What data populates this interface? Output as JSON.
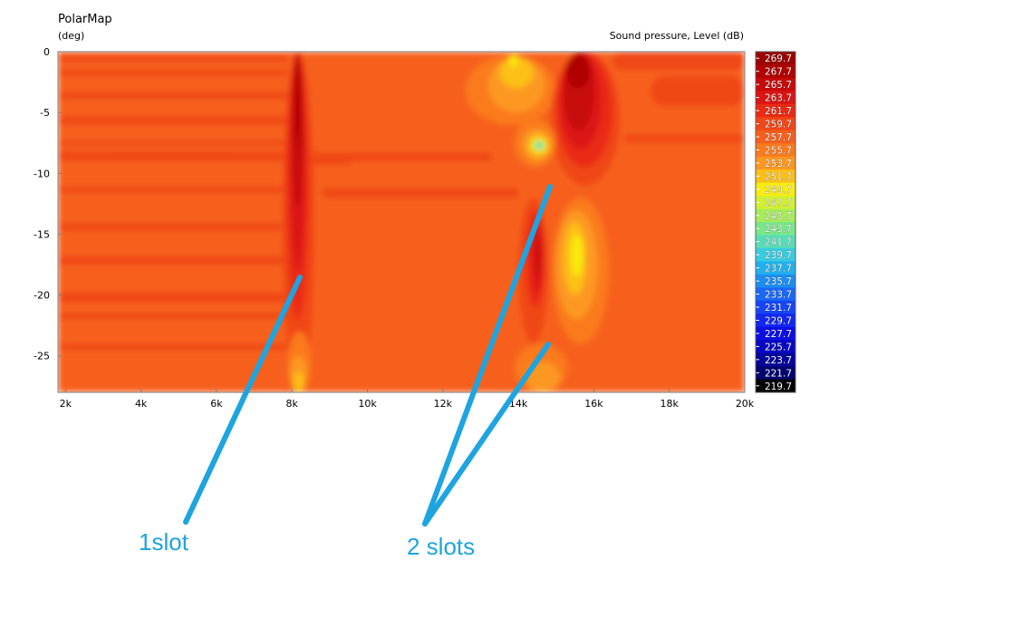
{
  "chart_data": {
    "type": "heatmap",
    "title": "PolarMap",
    "ylabel": "(deg)",
    "colorbar_label": "Sound pressure, Level  (dB)",
    "xlim": [
      1800,
      20000
    ],
    "ylim": [
      -28,
      0
    ],
    "x_ticks": [
      {
        "value": 2000,
        "label": "2k"
      },
      {
        "value": 4000,
        "label": "4k"
      },
      {
        "value": 6000,
        "label": "6k"
      },
      {
        "value": 8000,
        "label": "8k"
      },
      {
        "value": 10000,
        "label": "10k"
      },
      {
        "value": 12000,
        "label": "12k"
      },
      {
        "value": 14000,
        "label": "14k"
      },
      {
        "value": 16000,
        "label": "16k"
      },
      {
        "value": 18000,
        "label": "18k"
      },
      {
        "value": 20000,
        "label": "20k"
      }
    ],
    "y_ticks": [
      {
        "value": 0,
        "label": "0"
      },
      {
        "value": -5,
        "label": "-5"
      },
      {
        "value": -10,
        "label": "-10"
      },
      {
        "value": -15,
        "label": "-15"
      },
      {
        "value": -20,
        "label": "-20"
      },
      {
        "value": -25,
        "label": "-25"
      }
    ],
    "colorbar_levels": [
      "269.7",
      "267.7",
      "265.7",
      "263.7",
      "261.7",
      "259.7",
      "257.7",
      "255.7",
      "253.7",
      "251.7",
      "249.7",
      "247.7",
      "245.7",
      "243.7",
      "241.7",
      "239.7",
      "237.7",
      "235.7",
      "233.7",
      "231.7",
      "229.7",
      "227.7",
      "225.7",
      "223.7",
      "221.7",
      "219.7"
    ],
    "colorbar_colors": [
      "#9c0000",
      "#b00000",
      "#c80a0a",
      "#dc1414",
      "#ea2a14",
      "#f04618",
      "#f6601e",
      "#fa7a1e",
      "#fc9820",
      "#fcc018",
      "#f8ec10",
      "#d2f030",
      "#a6ec5a",
      "#7ae68a",
      "#58dcb8",
      "#38cce0",
      "#22b0ec",
      "#1c8ef2",
      "#1a68f8",
      "#1646f8",
      "#1228f2",
      "#0c10e4",
      "#0808c4",
      "#04049c",
      "#020270",
      "#000000"
    ],
    "regions": [
      {
        "xmin": 1800,
        "xmax": 20000,
        "ymin": -28,
        "ymax": 0,
        "level": "257.7"
      },
      {
        "xmin": 1800,
        "xmax": 7900,
        "ymin": -0.8,
        "ymax": -0.3,
        "level": "259.7"
      },
      {
        "xmin": 1800,
        "xmax": 7900,
        "ymin": -2.0,
        "ymax": -1.5,
        "level": "259.7"
      },
      {
        "xmin": 1800,
        "xmax": 7900,
        "ymin": -3.9,
        "ymax": -3.3,
        "level": "259.7"
      },
      {
        "xmin": 1800,
        "xmax": 7900,
        "ymin": -6.0,
        "ymax": -5.3,
        "level": "259.7"
      },
      {
        "xmin": 1800,
        "xmax": 7900,
        "ymin": -7.7,
        "ymax": -7.3,
        "level": "259.7"
      },
      {
        "xmin": 1800,
        "xmax": 7900,
        "ymin": -9.0,
        "ymax": -8.2,
        "level": "259.7"
      },
      {
        "xmin": 1800,
        "xmax": 7900,
        "ymin": -11.6,
        "ymax": -11.1,
        "level": "259.7"
      },
      {
        "xmin": 1800,
        "xmax": 7900,
        "ymin": -14.7,
        "ymax": -14.1,
        "level": "259.7"
      },
      {
        "xmin": 1800,
        "xmax": 7900,
        "ymin": -17.5,
        "ymax": -16.8,
        "level": "259.7"
      },
      {
        "xmin": 1800,
        "xmax": 7900,
        "ymin": -20.6,
        "ymax": -19.8,
        "level": "259.7"
      },
      {
        "xmin": 1800,
        "xmax": 7900,
        "ymin": -22.0,
        "ymax": -21.5,
        "level": "259.7"
      },
      {
        "xmin": 1800,
        "xmax": 7900,
        "ymin": -24.5,
        "ymax": -24.0,
        "level": "259.7"
      },
      {
        "xmin": 8800,
        "xmax": 13300,
        "ymin": -9.0,
        "ymax": -8.3,
        "level": "259.7"
      },
      {
        "xmin": 8800,
        "xmax": 14000,
        "ymin": -12.0,
        "ymax": -11.2,
        "level": "259.7"
      },
      {
        "xmin": 16200,
        "xmax": 20000,
        "ymin": -28,
        "ymax": 0,
        "level": "257.7"
      },
      {
        "xmin": 16500,
        "xmax": 20000,
        "ymin": -1.5,
        "ymax": 0,
        "level": "259.7"
      },
      {
        "xmin": 16800,
        "xmax": 20000,
        "ymin": -7.5,
        "ymax": -6.8,
        "level": "259.7"
      },
      {
        "xmin": 17500,
        "xmax": 20000,
        "ymin": -4.5,
        "ymax": -2.0,
        "level": "259.7"
      },
      {
        "xmin": 7750,
        "xmax": 8600,
        "ymin": -28,
        "ymax": 0,
        "level": "259.7"
      },
      {
        "xmin": 7850,
        "xmax": 8450,
        "ymin": -22.0,
        "ymax": 0,
        "level": "261.7"
      },
      {
        "xmin": 7950,
        "xmax": 8350,
        "ymin": -18.0,
        "ymax": 0,
        "level": "263.7"
      },
      {
        "xmin": 8000,
        "xmax": 8300,
        "ymin": -13.0,
        "ymax": 0,
        "level": "265.7"
      },
      {
        "xmin": 8070,
        "xmax": 8230,
        "ymin": -8.0,
        "ymax": -0.5,
        "level": "267.7"
      },
      {
        "xmin": 7900,
        "xmax": 8500,
        "ymin": -28,
        "ymax": -23.0,
        "level": "255.7"
      },
      {
        "xmin": 7950,
        "xmax": 8400,
        "ymin": -28,
        "ymax": -25.0,
        "level": "253.7"
      },
      {
        "xmin": 8050,
        "xmax": 8300,
        "ymin": -28,
        "ymax": -26.3,
        "level": "251.7"
      },
      {
        "xmin": 8500,
        "xmax": 9600,
        "ymin": -9.3,
        "ymax": -8.3,
        "level": "259.7"
      },
      {
        "xmin": 13900,
        "xmax": 15300,
        "ymin": -28,
        "ymax": -24.0,
        "level": "255.7"
      },
      {
        "xmin": 14200,
        "xmax": 15100,
        "ymin": -28,
        "ymax": -25.5,
        "level": "253.7"
      },
      {
        "xmin": 12600,
        "xmax": 15000,
        "ymin": -6.0,
        "ymax": -0.3,
        "level": "255.7"
      },
      {
        "xmin": 13200,
        "xmax": 14700,
        "ymin": -5.0,
        "ymax": -0.5,
        "level": "253.7"
      },
      {
        "xmin": 13500,
        "xmax": 14400,
        "ymin": -3.0,
        "ymax": -0.5,
        "level": "251.7"
      },
      {
        "xmin": 13750,
        "xmax": 14000,
        "ymin": -1.2,
        "ymax": -0.3,
        "level": "249.7"
      },
      {
        "xmin": 14000,
        "xmax": 14800,
        "ymin": -24.0,
        "ymax": -12.0,
        "level": "259.7"
      },
      {
        "xmin": 14200,
        "xmax": 14700,
        "ymin": -21.0,
        "ymax": -13.0,
        "level": "261.7"
      },
      {
        "xmin": 14350,
        "xmax": 14650,
        "ymin": -20.0,
        "ymax": -14.0,
        "level": "263.7"
      },
      {
        "xmin": 14450,
        "xmax": 14600,
        "ymin": -18.5,
        "ymax": -15.0,
        "level": "265.7"
      },
      {
        "xmin": 14850,
        "xmax": 16700,
        "ymin": -11.0,
        "ymax": 0,
        "level": "259.7"
      },
      {
        "xmin": 15000,
        "xmax": 16500,
        "ymin": -9.5,
        "ymax": 0,
        "level": "261.7"
      },
      {
        "xmin": 15100,
        "xmax": 16200,
        "ymin": -8.0,
        "ymax": 0,
        "level": "263.7"
      },
      {
        "xmin": 15200,
        "xmax": 16000,
        "ymin": -6.5,
        "ymax": 0,
        "level": "265.7"
      },
      {
        "xmin": 15250,
        "xmax": 15900,
        "ymin": -3.0,
        "ymax": -0.2,
        "level": "267.7"
      },
      {
        "xmin": 14900,
        "xmax": 16400,
        "ymin": -24.0,
        "ymax": -12.0,
        "level": "255.7"
      },
      {
        "xmin": 15000,
        "xmax": 16100,
        "ymin": -22.0,
        "ymax": -13.0,
        "level": "253.7"
      },
      {
        "xmin": 15200,
        "xmax": 15800,
        "ymin": -20.0,
        "ymax": -14.0,
        "level": "251.7"
      },
      {
        "xmin": 15400,
        "xmax": 15700,
        "ymin": -18.5,
        "ymax": -15.0,
        "level": "249.7"
      },
      {
        "xmin": 13900,
        "xmax": 15000,
        "ymin": -9.5,
        "ymax": -5.5,
        "level": "255.7"
      },
      {
        "xmin": 14100,
        "xmax": 14900,
        "ymin": -9.0,
        "ymax": -6.3,
        "level": "253.7"
      },
      {
        "xmin": 14250,
        "xmax": 14800,
        "ymin": -8.6,
        "ymax": -6.8,
        "level": "251.7"
      },
      {
        "xmin": 14350,
        "xmax": 14750,
        "ymin": -8.3,
        "ymax": -7.1,
        "level": "249.7"
      },
      {
        "xmin": 14400,
        "xmax": 14700,
        "ymin": -8.1,
        "ymax": -7.3,
        "level": "245.7"
      },
      {
        "xmin": 14470,
        "xmax": 14650,
        "ymin": -7.95,
        "ymax": -7.45,
        "level": "241.7"
      },
      {
        "xmin": 14500,
        "xmax": 14620,
        "ymin": -7.85,
        "ymax": -7.55,
        "level": "239.7"
      }
    ]
  },
  "annotations": {
    "one_slot": "1slot",
    "two_slots": "2 slots",
    "line_color": "#1ea4e0"
  }
}
